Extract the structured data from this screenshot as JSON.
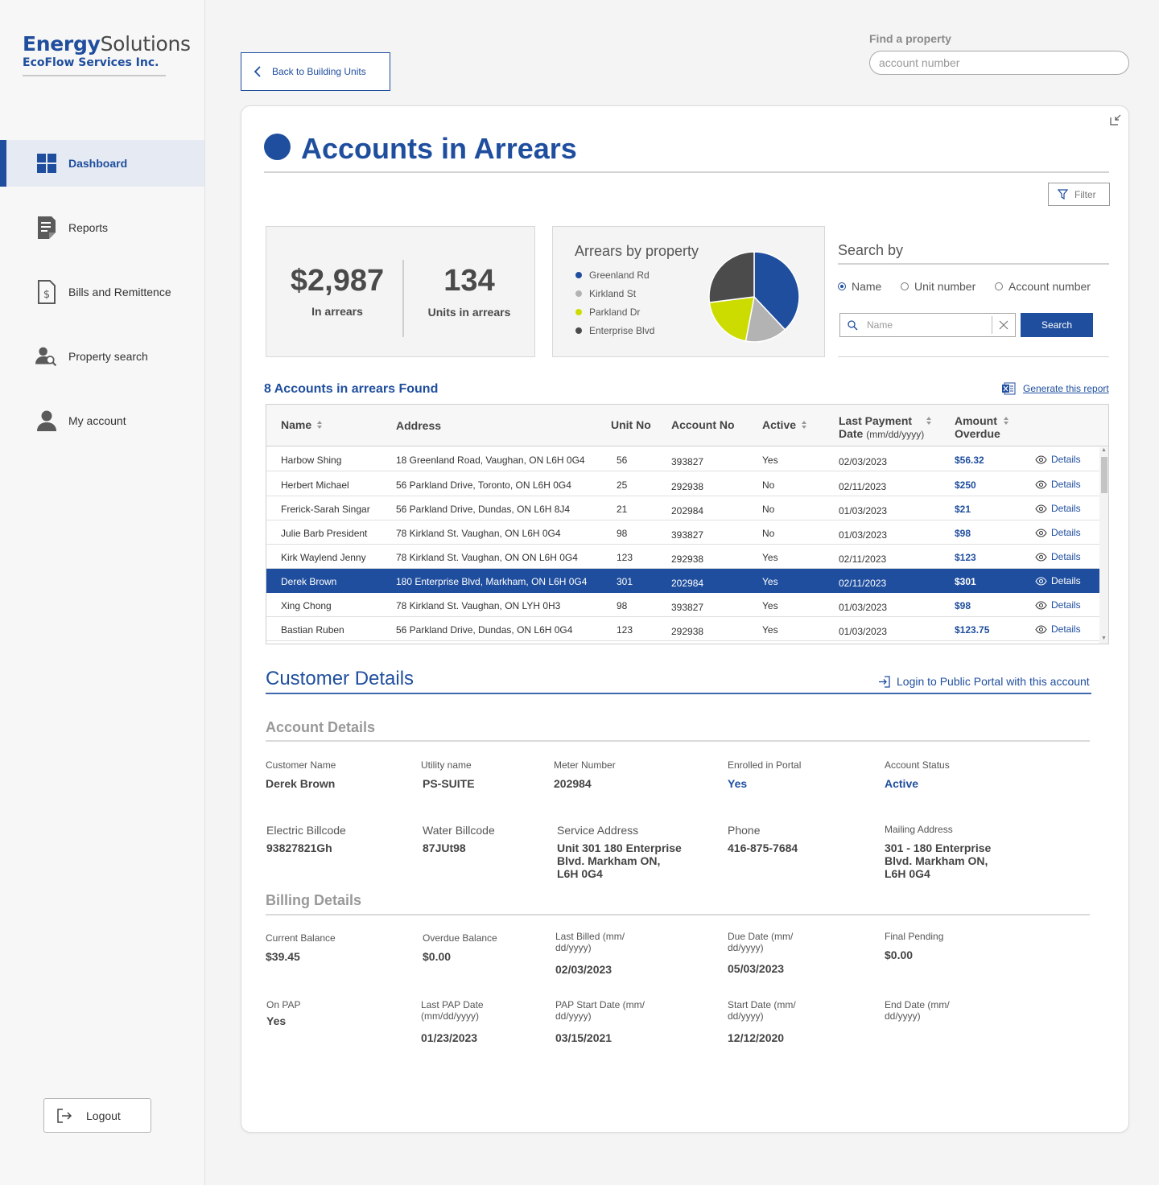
{
  "brand": {
    "name_bold": "Energy",
    "name_rest": "Solutions",
    "company": "EcoFlow Services Inc."
  },
  "nav": [
    {
      "label": "Dashboard",
      "icon": "dashboard-icon",
      "active": true
    },
    {
      "label": "Reports",
      "icon": "reports-icon"
    },
    {
      "label": "Bills and Remittence",
      "icon": "bill-icon"
    },
    {
      "label": "Property search",
      "icon": "property-search-icon"
    },
    {
      "label": "My account",
      "icon": "user-icon"
    }
  ],
  "logout_label": "Logout",
  "back_label": "Back to Building Units",
  "find": {
    "label": "Find a property",
    "placeholder": "account number"
  },
  "page_title": "Accounts in Arrears",
  "filter_label": "Filter",
  "stats": {
    "amount": "$2,987",
    "amount_label": "In arrears",
    "units": "134",
    "units_label": "Units in arrears"
  },
  "chart_data": {
    "type": "pie",
    "title": "Arrears by property",
    "labels": [
      "Greenland Rd",
      "Kirkland St",
      "Parkland Dr",
      "Enterprise Blvd"
    ],
    "values": [
      38,
      15,
      20,
      27
    ],
    "colors": [
      "#1f4e9e",
      "#b3b3b3",
      "#cddc00",
      "#4b4b4b"
    ]
  },
  "search": {
    "title": "Search by",
    "options": [
      "Name",
      "Unit number",
      "Account number"
    ],
    "selected": "Name",
    "placeholder": "Name",
    "button": "Search"
  },
  "results": {
    "found_label": "8 Accounts in arrears Found",
    "report_label": "Generate this report",
    "headers": {
      "name": "Name",
      "address": "Address",
      "unit": "Unit No",
      "account": "Account No",
      "active": "Active",
      "last_payment": "Last Payment",
      "last_payment_date": "Date",
      "date_format": "(mm/dd/yyyy)",
      "amount": "Amount",
      "overdue": "Overdue"
    },
    "details_label": "Details",
    "rows": [
      {
        "name": "Harbow Shing",
        "address": "18 Greenland Road, Vaughan, ON L6H 0G4",
        "unit": "56",
        "account": "393827",
        "active": "Yes",
        "date": "02/03/2023",
        "amount": "$56.32"
      },
      {
        "name": "Herbert Michael",
        "address": "56 Parkland Drive, Toronto, ON L6H 0G4",
        "unit": "25",
        "account": "292938",
        "active": "No",
        "date": "02/11/2023",
        "amount": "$250"
      },
      {
        "name": "Frerick-Sarah Singar",
        "address": "56 Parkland Drive, Dundas, ON L6H 8J4",
        "unit": "21",
        "account": "202984",
        "active": "No",
        "date": "01/03/2023",
        "amount": "$21"
      },
      {
        "name": "Julie Barb President",
        "address": "78 Kirkland St. Vaughan, ON L6H 0G4",
        "unit": "98",
        "account": "393827",
        "active": "No",
        "date": "01/03/2023",
        "amount": "$98"
      },
      {
        "name": "Kirk Waylend Jenny",
        "address": "78 Kirkland St. Vaughan, ON ON L6H 0G4",
        "unit": "123",
        "account": "292938",
        "active": "Yes",
        "date": "02/11/2023",
        "amount": "$123"
      },
      {
        "name": "Derek Brown",
        "address": "180 Enterprise Blvd, Markham, ON L6H 0G4",
        "unit": "301",
        "account": "202984",
        "active": "Yes",
        "date": "02/11/2023",
        "amount": "$301",
        "selected": true
      },
      {
        "name": "Xing Chong",
        "address": "78 Kirkland St. Vaughan, ON LYH 0H3",
        "unit": "98",
        "account": "393827",
        "active": "Yes",
        "date": "01/03/2023",
        "amount": "$98"
      },
      {
        "name": "Bastian Ruben",
        "address": "56 Parkland Drive, Dundas, ON L6H 0G4",
        "unit": "123",
        "account": "292938",
        "active": "Yes",
        "date": "01/03/2023",
        "amount": "$123.75"
      }
    ]
  },
  "customer": {
    "title": "Customer Details",
    "portal_link": "Login to Public Portal with this account",
    "account_heading": "Account Details",
    "billing_heading": "Billing Details",
    "account_fields": [
      {
        "label": "Customer Name",
        "value": "Derek Brown"
      },
      {
        "label": "Utility name",
        "value": "PS-SUITE"
      },
      {
        "label": "Meter Number",
        "value": "202984"
      },
      {
        "label": "Enrolled in Portal",
        "value": "Yes"
      },
      {
        "label": "Account Status",
        "value": "Active"
      },
      {
        "label": "Electric Billcode",
        "value": "93827821Gh"
      },
      {
        "label": "Water Billcode",
        "value": "87JUt98"
      },
      {
        "label": "Service Address",
        "value_lines": [
          "Unit 301 180 Enterprise",
          "Blvd. Markham ON,",
          "L6H 0G4"
        ]
      },
      {
        "label": "Phone",
        "value": "416-875-7684"
      },
      {
        "label": "Mailing Address",
        "value_lines": [
          "301 - 180 Enterprise",
          "Blvd. Markham ON,",
          "L6H 0G4"
        ]
      }
    ],
    "billing_fields": [
      {
        "label": "Current Balance",
        "value": "$39.45"
      },
      {
        "label": "Overdue Balance",
        "value": "$0.00"
      },
      {
        "label_lines": [
          "Last Billed (mm/",
          "dd/yyyy)"
        ],
        "value": "02/03/2023"
      },
      {
        "label_lines": [
          "Due Date (mm/",
          "dd/yyyy)"
        ],
        "value": "05/03/2023"
      },
      {
        "label": "Final Pending",
        "value": "$0.00"
      },
      {
        "label": "On PAP",
        "value": "Yes"
      },
      {
        "label_lines": [
          "Last PAP Date",
          "(mm/dd/yyyy)"
        ],
        "value": "01/23/2023"
      },
      {
        "label_lines": [
          "PAP Start Date (mm/",
          "dd/yyyy)"
        ],
        "value": "03/15/2021"
      },
      {
        "label_lines": [
          "Start Date (mm/",
          "dd/yyyy)"
        ],
        "value": "12/12/2020"
      },
      {
        "label_lines": [
          "End Date (mm/",
          "dd/yyyy)"
        ],
        "value": ""
      }
    ]
  }
}
